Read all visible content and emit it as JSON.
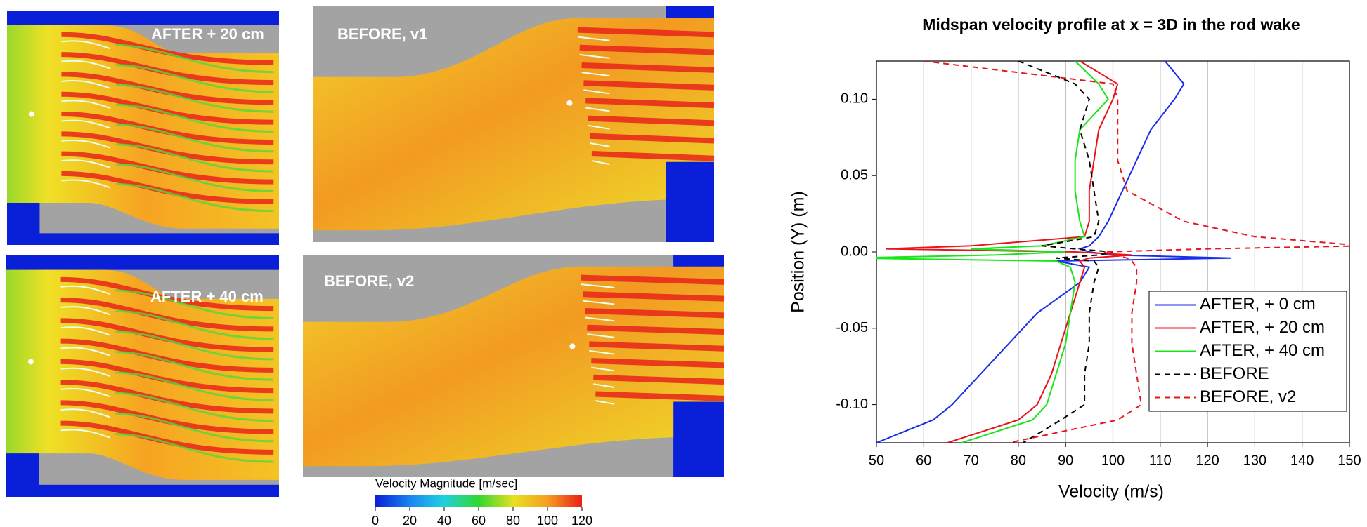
{
  "panels": {
    "labels": [
      "AFTER + 20 cm",
      "BEFORE, v1",
      "AFTER + 40 cm",
      "BEFORE, v2"
    ]
  },
  "colorbar": {
    "title": "Velocity Magnitude [m/sec]",
    "lim": [
      0,
      120
    ],
    "ticks": [
      0,
      20,
      40,
      60,
      80,
      100,
      120
    ]
  },
  "chart_data": {
    "type": "line",
    "title": "Midspan velocity profile at x = 3D in the rod wake",
    "x_label": "Velocity (m/s)",
    "y_label": "Position (Y) (m)",
    "xlim": [
      50,
      150
    ],
    "xticks": [
      50,
      60,
      70,
      80,
      90,
      100,
      110,
      120,
      130,
      140,
      150
    ],
    "ylim": [
      -0.125,
      0.125
    ],
    "yticks": [
      {
        "value": 0.1,
        "label": "0.10"
      },
      0.05,
      {
        "value": 0,
        "label": "0.00"
      },
      -0.05,
      {
        "value": -0.1,
        "label": "-0.10"
      }
    ],
    "grid": true,
    "legend": "lower right",
    "y": [
      0.125,
      0.11,
      0.1,
      0.08,
      0.06,
      0.04,
      0.02,
      0.01,
      0.004,
      0.002,
      0,
      -0.002,
      -0.004,
      -0.006,
      -0.01,
      -0.02,
      -0.04,
      -0.06,
      -0.08,
      -0.1,
      -0.11,
      -0.125
    ],
    "series": [
      {
        "name": "AFTER, + 0 cm",
        "color": "#1a2ee8",
        "dash": false,
        "values": [
          111,
          115,
          113,
          108,
          105,
          102,
          99,
          97,
          95,
          93,
          95,
          100,
          125,
          88,
          95,
          93,
          84,
          78,
          72,
          66,
          62,
          50
        ]
      },
      {
        "name": "AFTER, + 20 cm",
        "color": "#e8141a",
        "dash": false,
        "values": [
          93,
          101,
          100,
          97,
          96,
          95,
          95,
          94,
          70,
          52,
          92,
          104,
          95,
          93,
          94,
          93,
          91,
          89,
          87,
          84,
          80,
          65
        ]
      },
      {
        "name": "AFTER, + 40 cm",
        "color": "#19e619",
        "dash": false,
        "values": [
          92,
          97,
          99,
          93,
          92,
          92,
          93,
          94,
          85,
          70,
          90,
          75,
          44,
          88,
          91,
          92,
          91,
          90,
          88,
          86,
          83,
          68
        ]
      },
      {
        "name": "BEFORE",
        "color": "#000000",
        "dash": true,
        "values": [
          80,
          92,
          95,
          93,
          95,
          96,
          97,
          96,
          85,
          92,
          100,
          97,
          88,
          96,
          97,
          96,
          95,
          95,
          94,
          94,
          89,
          81
        ]
      },
      {
        "name": "BEFORE, v2",
        "color": "#e8141a",
        "dash": true,
        "values": [
          60,
          100,
          101,
          101,
          101,
          103,
          115,
          130,
          153,
          120,
          98,
          100,
          103,
          104,
          105,
          105,
          104,
          104,
          105,
          106,
          101,
          78
        ]
      }
    ]
  }
}
